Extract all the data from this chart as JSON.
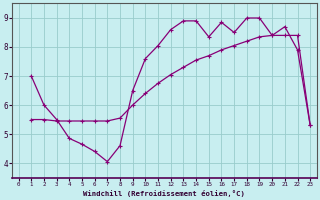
{
  "xlabel": "Windchill (Refroidissement éolien,°C)",
  "bg_color": "#c8eef0",
  "grid_color": "#99cccc",
  "line_color": "#880077",
  "line1_x": [
    1,
    2,
    3,
    4,
    5,
    6,
    7,
    8,
    9,
    10,
    11,
    12,
    13,
    14,
    15,
    16,
    17,
    18,
    19,
    20,
    21,
    22,
    23
  ],
  "line1_y": [
    7.0,
    6.0,
    5.5,
    4.85,
    4.65,
    4.4,
    4.05,
    4.6,
    6.5,
    7.6,
    8.05,
    8.6,
    8.9,
    8.9,
    8.35,
    8.85,
    8.5,
    9.0,
    9.0,
    8.4,
    8.7,
    7.9,
    5.3
  ],
  "line2_x": [
    1,
    2,
    3,
    4,
    5,
    6,
    7,
    8,
    9,
    10,
    11,
    12,
    13,
    14,
    15,
    16,
    17,
    18,
    19,
    20,
    21,
    22,
    23
  ],
  "line2_y": [
    5.5,
    5.5,
    5.45,
    5.45,
    5.45,
    5.45,
    5.45,
    5.55,
    6.0,
    6.4,
    6.75,
    7.05,
    7.3,
    7.55,
    7.7,
    7.9,
    8.05,
    8.2,
    8.35,
    8.4,
    8.4,
    8.4,
    5.3
  ],
  "ylim": [
    3.5,
    9.5
  ],
  "xlim": [
    -0.5,
    23.5
  ],
  "yticks": [
    4,
    5,
    6,
    7,
    8,
    9
  ],
  "xticks": [
    0,
    1,
    2,
    3,
    4,
    5,
    6,
    7,
    8,
    9,
    10,
    11,
    12,
    13,
    14,
    15,
    16,
    17,
    18,
    19,
    20,
    21,
    22,
    23
  ]
}
